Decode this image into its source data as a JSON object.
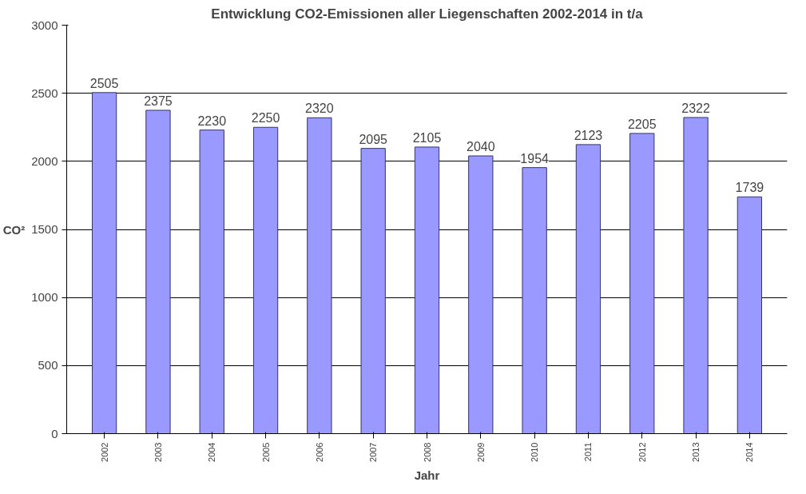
{
  "chart_data": {
    "type": "bar",
    "title": "Entwicklung CO2-Emissionen aller Liegenschaften 2002-2014 in t/a",
    "xlabel": "Jahr",
    "ylabel": "CO²",
    "categories": [
      "2002",
      "2003",
      "2004",
      "2005",
      "2006",
      "2007",
      "2008",
      "2009",
      "2010",
      "2011",
      "2012",
      "2013",
      "2014"
    ],
    "values": [
      2505,
      2375,
      2230,
      2250,
      2320,
      2095,
      2105,
      2040,
      1954,
      2123,
      2205,
      2322,
      1739
    ],
    "color": "#9999ff",
    "ylim": [
      0,
      3000
    ],
    "yticks": [
      0,
      500,
      1000,
      1500,
      2000,
      2500,
      3000
    ],
    "grid": "y",
    "data_labels": true
  }
}
